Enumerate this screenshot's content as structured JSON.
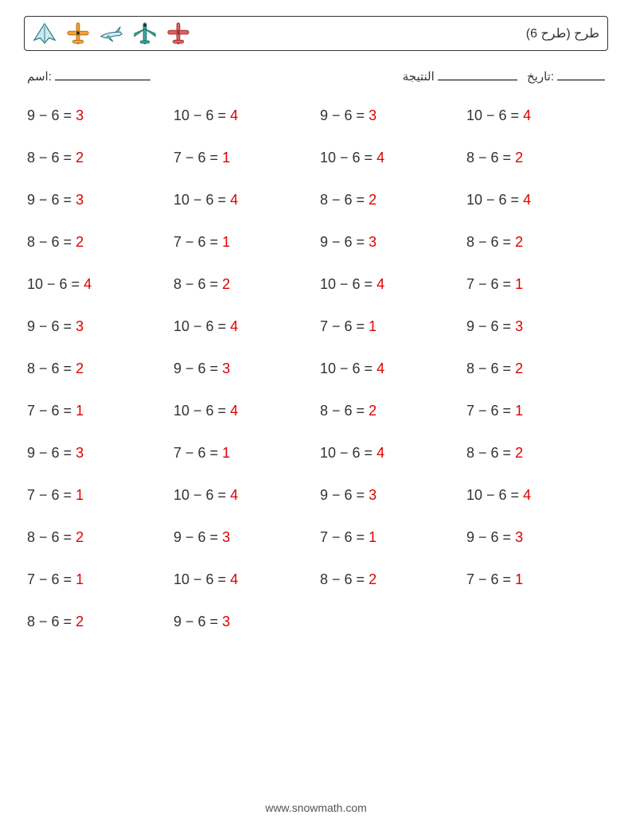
{
  "header": {
    "title": "(طرح (طرح 6",
    "icons": [
      "plane-stealth-icon",
      "plane-top-orange-icon",
      "plane-side-icon",
      "plane-top-teal-icon",
      "plane-top-red-icon"
    ]
  },
  "meta": {
    "name_label": "اسم:",
    "score_label": "النتيجة",
    "date_label": "تاريخ:"
  },
  "style": {
    "answer_color": "#d00",
    "text_color": "#333",
    "border_color": "#333",
    "font_size_eq": 18,
    "font_size_meta": 15,
    "font_size_title": 16,
    "cols": 4,
    "row_gap": 32
  },
  "icon_colors": {
    "stealth_fill": "#cfe8ef",
    "stealth_stroke": "#2a7a8c",
    "orange_fill": "#f4a13a",
    "orange_stroke": "#b36b12",
    "side_fill": "#d7ecf3",
    "side_stroke": "#2a7a8c",
    "teal_fill": "#3aa9a0",
    "teal_stroke": "#1f6e67",
    "red_fill": "#e06060",
    "red_stroke": "#9c2b2b",
    "hub": "#2a2a2a"
  },
  "problems": [
    [
      {
        "a": 9,
        "b": 6,
        "r": 3
      },
      {
        "a": 10,
        "b": 6,
        "r": 4
      },
      {
        "a": 9,
        "b": 6,
        "r": 3
      },
      {
        "a": 10,
        "b": 6,
        "r": 4
      }
    ],
    [
      {
        "a": 8,
        "b": 6,
        "r": 2
      },
      {
        "a": 7,
        "b": 6,
        "r": 1
      },
      {
        "a": 10,
        "b": 6,
        "r": 4
      },
      {
        "a": 8,
        "b": 6,
        "r": 2
      }
    ],
    [
      {
        "a": 9,
        "b": 6,
        "r": 3
      },
      {
        "a": 10,
        "b": 6,
        "r": 4
      },
      {
        "a": 8,
        "b": 6,
        "r": 2
      },
      {
        "a": 10,
        "b": 6,
        "r": 4
      }
    ],
    [
      {
        "a": 8,
        "b": 6,
        "r": 2
      },
      {
        "a": 7,
        "b": 6,
        "r": 1
      },
      {
        "a": 9,
        "b": 6,
        "r": 3
      },
      {
        "a": 8,
        "b": 6,
        "r": 2
      }
    ],
    [
      {
        "a": 10,
        "b": 6,
        "r": 4
      },
      {
        "a": 8,
        "b": 6,
        "r": 2
      },
      {
        "a": 10,
        "b": 6,
        "r": 4
      },
      {
        "a": 7,
        "b": 6,
        "r": 1
      }
    ],
    [
      {
        "a": 9,
        "b": 6,
        "r": 3
      },
      {
        "a": 10,
        "b": 6,
        "r": 4
      },
      {
        "a": 7,
        "b": 6,
        "r": 1
      },
      {
        "a": 9,
        "b": 6,
        "r": 3
      }
    ],
    [
      {
        "a": 8,
        "b": 6,
        "r": 2
      },
      {
        "a": 9,
        "b": 6,
        "r": 3
      },
      {
        "a": 10,
        "b": 6,
        "r": 4
      },
      {
        "a": 8,
        "b": 6,
        "r": 2
      }
    ],
    [
      {
        "a": 7,
        "b": 6,
        "r": 1
      },
      {
        "a": 10,
        "b": 6,
        "r": 4
      },
      {
        "a": 8,
        "b": 6,
        "r": 2
      },
      {
        "a": 7,
        "b": 6,
        "r": 1
      }
    ],
    [
      {
        "a": 9,
        "b": 6,
        "r": 3
      },
      {
        "a": 7,
        "b": 6,
        "r": 1
      },
      {
        "a": 10,
        "b": 6,
        "r": 4
      },
      {
        "a": 8,
        "b": 6,
        "r": 2
      }
    ],
    [
      {
        "a": 7,
        "b": 6,
        "r": 1
      },
      {
        "a": 10,
        "b": 6,
        "r": 4
      },
      {
        "a": 9,
        "b": 6,
        "r": 3
      },
      {
        "a": 10,
        "b": 6,
        "r": 4
      }
    ],
    [
      {
        "a": 8,
        "b": 6,
        "r": 2
      },
      {
        "a": 9,
        "b": 6,
        "r": 3
      },
      {
        "a": 7,
        "b": 6,
        "r": 1
      },
      {
        "a": 9,
        "b": 6,
        "r": 3
      }
    ],
    [
      {
        "a": 7,
        "b": 6,
        "r": 1
      },
      {
        "a": 10,
        "b": 6,
        "r": 4
      },
      {
        "a": 8,
        "b": 6,
        "r": 2
      },
      {
        "a": 7,
        "b": 6,
        "r": 1
      }
    ],
    [
      {
        "a": 8,
        "b": 6,
        "r": 2
      },
      {
        "a": 9,
        "b": 6,
        "r": 3
      }
    ]
  ],
  "footer": "www.snowmath.com"
}
